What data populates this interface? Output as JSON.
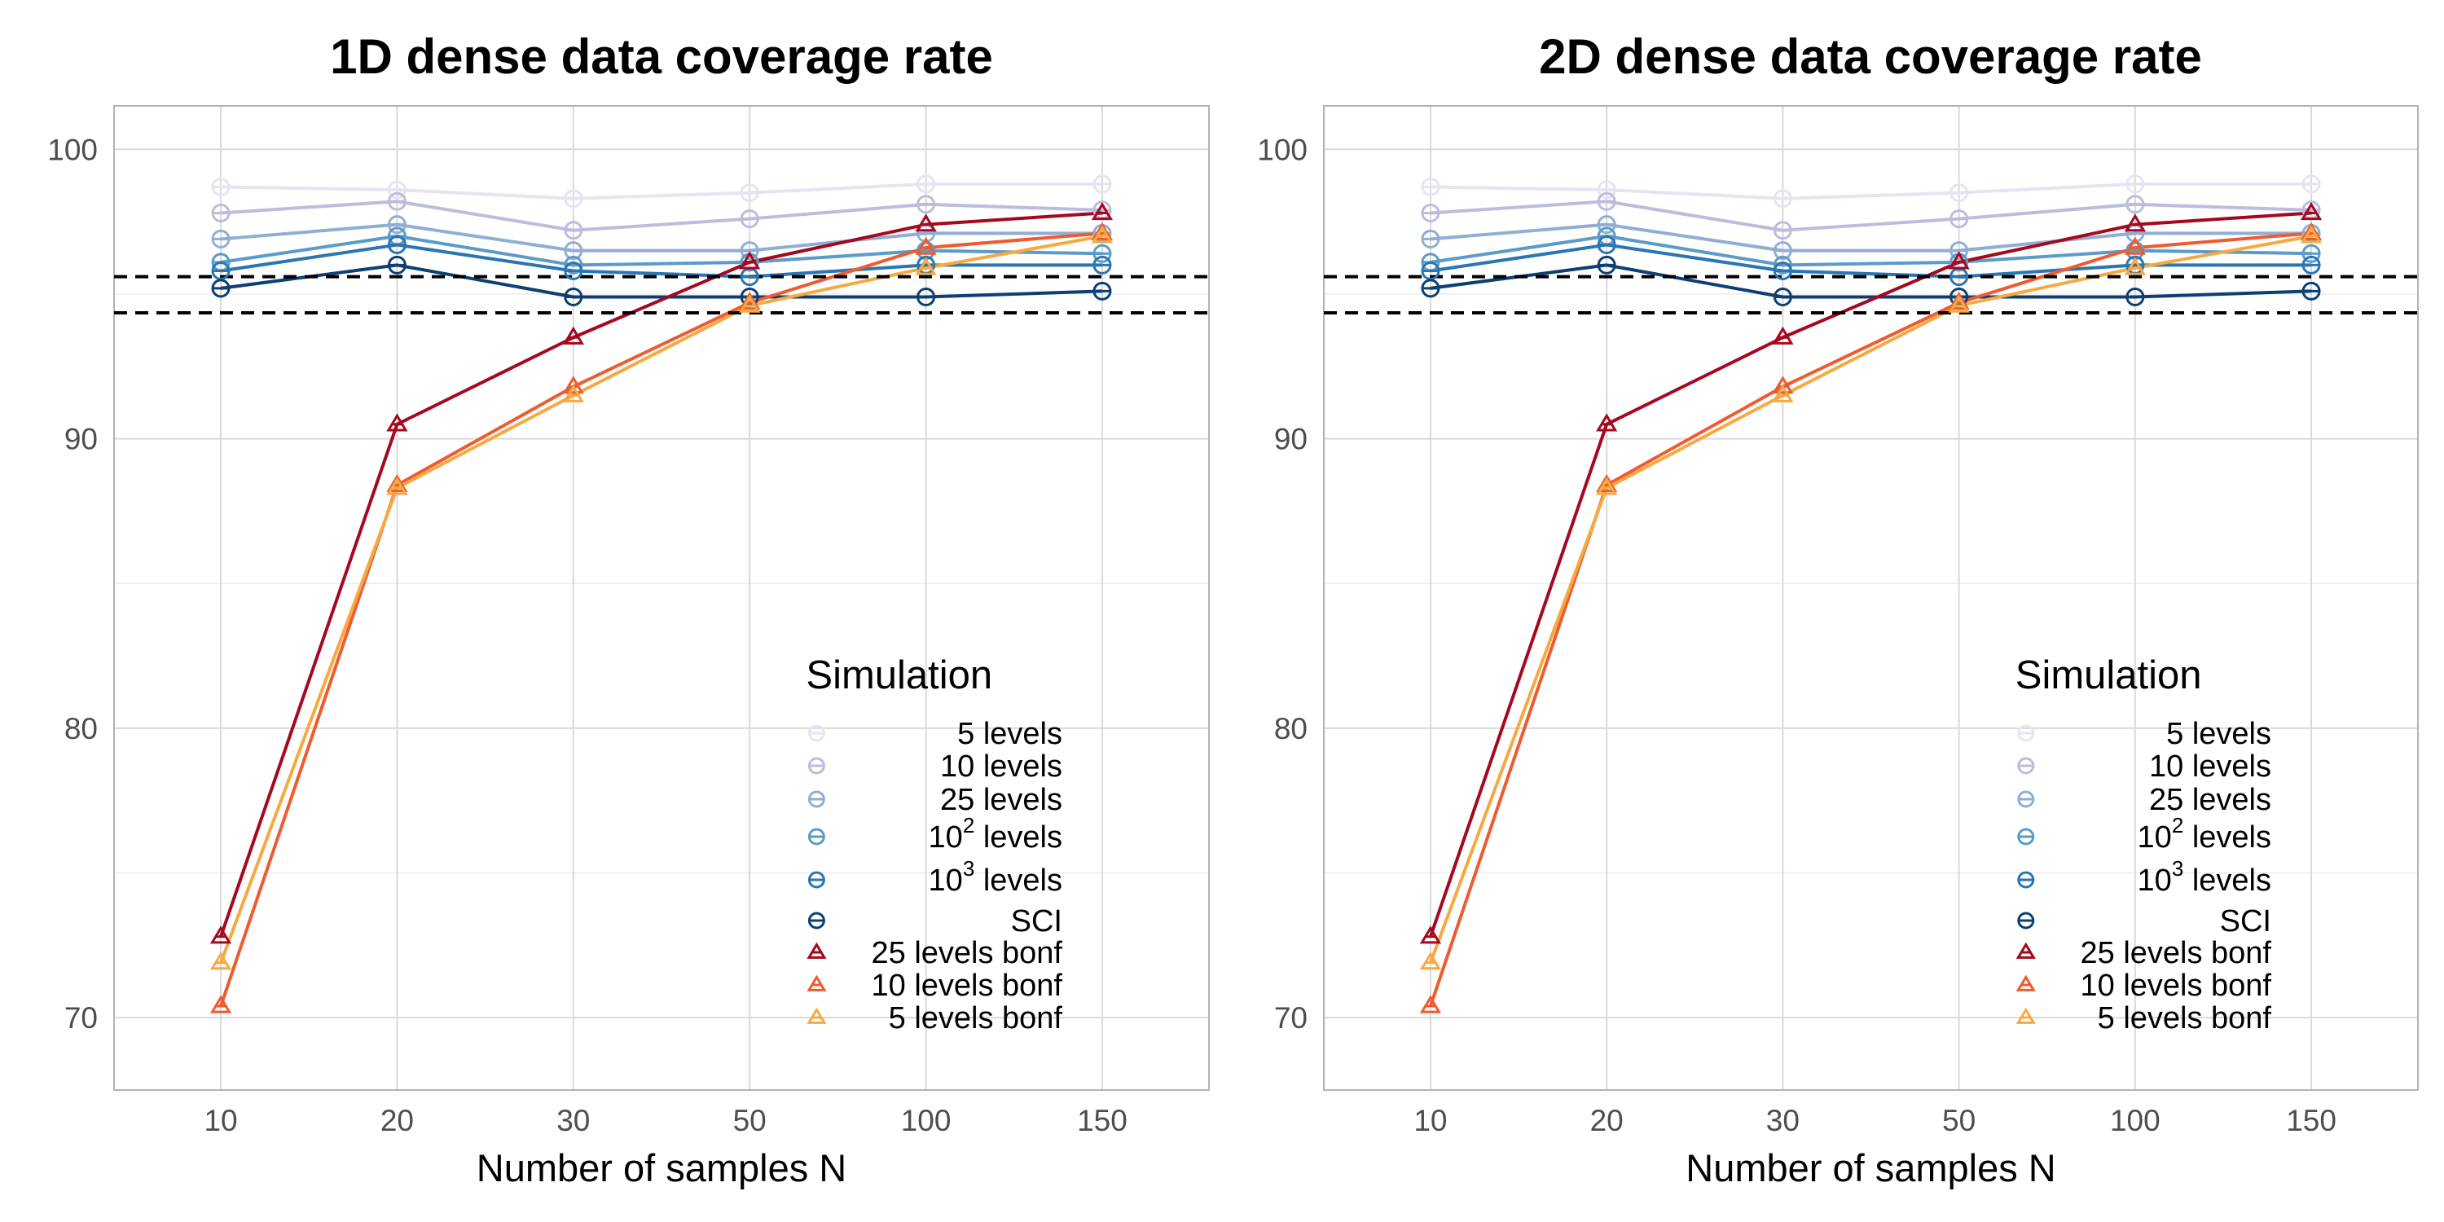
{
  "chart_data": [
    {
      "type": "line",
      "title": "1D dense data coverage rate",
      "xlabel": "Number of samples N",
      "ylabel": "",
      "categories": [
        "10",
        "20",
        "30",
        "50",
        "100",
        "150"
      ],
      "ylim": [
        67.5,
        101.5
      ],
      "yticks": [
        70,
        80,
        90,
        100
      ],
      "reference_lines": [
        95.6,
        94.35
      ],
      "legend_title": "Simulation",
      "legend_position": "bottom-right",
      "series": [
        {
          "name": "5 levels",
          "label_main": "5 levels",
          "marker": "circle",
          "color": "#e6e4f2",
          "values": [
            98.7,
            98.6,
            98.3,
            98.5,
            98.8,
            98.8
          ]
        },
        {
          "name": "10 levels",
          "label_main": "10 levels",
          "marker": "circle",
          "color": "#bcbcdc",
          "values": [
            97.8,
            98.2,
            97.2,
            97.6,
            98.1,
            97.9
          ]
        },
        {
          "name": "25 levels",
          "label_main": "25 levels",
          "marker": "circle",
          "color": "#90aed3",
          "values": [
            96.9,
            97.4,
            96.5,
            96.5,
            97.1,
            97.1
          ]
        },
        {
          "name": "10^2 levels",
          "label_main": "10",
          "label_sup": "2",
          "label_after": " levels",
          "marker": "circle",
          "color": "#5b9bc9",
          "values": [
            96.1,
            97.0,
            96.0,
            96.1,
            96.5,
            96.4
          ]
        },
        {
          "name": "10^3 levels",
          "label_main": "10",
          "label_sup": "3",
          "label_after": " levels",
          "marker": "circle",
          "color": "#2a75b3",
          "values": [
            95.8,
            96.7,
            95.8,
            95.6,
            96.0,
            96.0
          ]
        },
        {
          "name": "SCI",
          "label_main": "SCI",
          "marker": "circle",
          "color": "#0d3f73",
          "values": [
            95.2,
            96.0,
            94.9,
            94.9,
            94.9,
            95.1
          ]
        },
        {
          "name": "25 levels bonf",
          "label_main": "25 levels bonf",
          "marker": "triangle",
          "color": "#a5081f",
          "values": [
            72.8,
            90.5,
            93.5,
            96.1,
            97.4,
            97.8
          ]
        },
        {
          "name": "10 levels bonf",
          "label_main": "10 levels bonf",
          "marker": "triangle",
          "color": "#ef5b2f",
          "values": [
            70.4,
            88.4,
            91.8,
            94.7,
            96.6,
            97.1
          ]
        },
        {
          "name": "5 levels bonf",
          "label_main": "5 levels bonf",
          "marker": "triangle",
          "color": "#f7a941",
          "values": [
            71.9,
            88.3,
            91.5,
            94.6,
            95.9,
            97.0
          ]
        }
      ]
    },
    {
      "type": "line",
      "title": "2D dense data coverage rate",
      "xlabel": "Number of samples N",
      "ylabel": "",
      "categories": [
        "10",
        "20",
        "30",
        "50",
        "100",
        "150"
      ],
      "ylim": [
        67.5,
        101.5
      ],
      "yticks": [
        70,
        80,
        90,
        100
      ],
      "reference_lines": [
        95.6,
        94.35
      ],
      "legend_title": "Simulation",
      "legend_position": "bottom-right",
      "series": [
        {
          "name": "5 levels",
          "label_main": "5 levels",
          "marker": "circle",
          "color": "#e6e4f2",
          "values": [
            98.7,
            98.6,
            98.3,
            98.5,
            98.8,
            98.8
          ]
        },
        {
          "name": "10 levels",
          "label_main": "10 levels",
          "marker": "circle",
          "color": "#bcbcdc",
          "values": [
            97.8,
            98.2,
            97.2,
            97.6,
            98.1,
            97.9
          ]
        },
        {
          "name": "25 levels",
          "label_main": "25 levels",
          "marker": "circle",
          "color": "#90aed3",
          "values": [
            96.9,
            97.4,
            96.5,
            96.5,
            97.1,
            97.1
          ]
        },
        {
          "name": "10^2 levels",
          "label_main": "10",
          "label_sup": "2",
          "label_after": " levels",
          "marker": "circle",
          "color": "#5b9bc9",
          "values": [
            96.1,
            97.0,
            96.0,
            96.1,
            96.5,
            96.4
          ]
        },
        {
          "name": "10^3 levels",
          "label_main": "10",
          "label_sup": "3",
          "label_after": " levels",
          "marker": "circle",
          "color": "#2a75b3",
          "values": [
            95.8,
            96.7,
            95.8,
            95.6,
            96.0,
            96.0
          ]
        },
        {
          "name": "SCI",
          "label_main": "SCI",
          "marker": "circle",
          "color": "#0d3f73",
          "values": [
            95.2,
            96.0,
            94.9,
            94.9,
            94.9,
            95.1
          ]
        },
        {
          "name": "25 levels bonf",
          "label_main": "25 levels bonf",
          "marker": "triangle",
          "color": "#a5081f",
          "values": [
            72.8,
            90.5,
            93.5,
            96.1,
            97.4,
            97.8
          ]
        },
        {
          "name": "10 levels bonf",
          "label_main": "10 levels bonf",
          "marker": "triangle",
          "color": "#ef5b2f",
          "values": [
            70.4,
            88.4,
            91.8,
            94.7,
            96.6,
            97.1
          ]
        },
        {
          "name": "5 levels bonf",
          "label_main": "5 levels bonf",
          "marker": "triangle",
          "color": "#f7a941",
          "values": [
            71.9,
            88.3,
            91.5,
            94.6,
            95.9,
            97.0
          ]
        }
      ]
    }
  ]
}
